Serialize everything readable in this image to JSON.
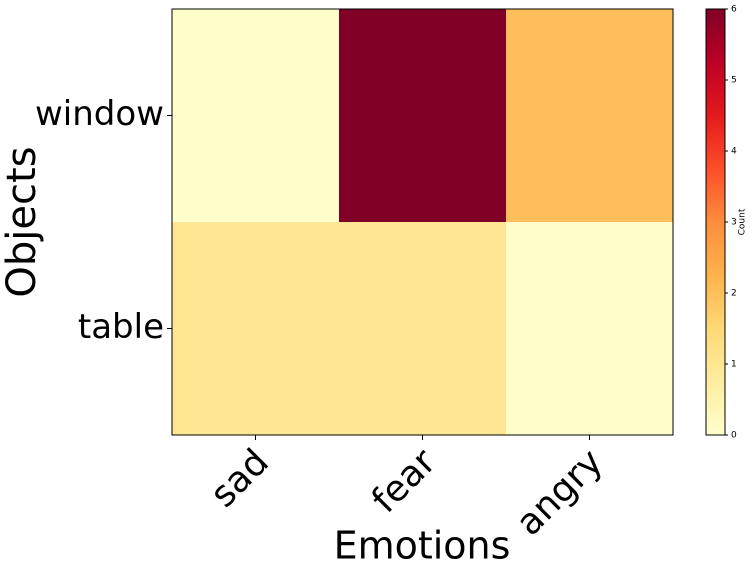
{
  "chart_data": {
    "type": "heatmap",
    "x_label": "Emotions",
    "y_label": "Objects",
    "x_categories": [
      "sad",
      "fear",
      "angry"
    ],
    "y_categories": [
      "window",
      "table"
    ],
    "values": [
      [
        0,
        6,
        2
      ],
      [
        1,
        1,
        0
      ]
    ],
    "colormap": "YlOrRd",
    "colorbar": {
      "label": "Count",
      "lim": [
        0,
        6
      ],
      "ticks": [
        0,
        1,
        2,
        3,
        4,
        5,
        6
      ]
    }
  }
}
